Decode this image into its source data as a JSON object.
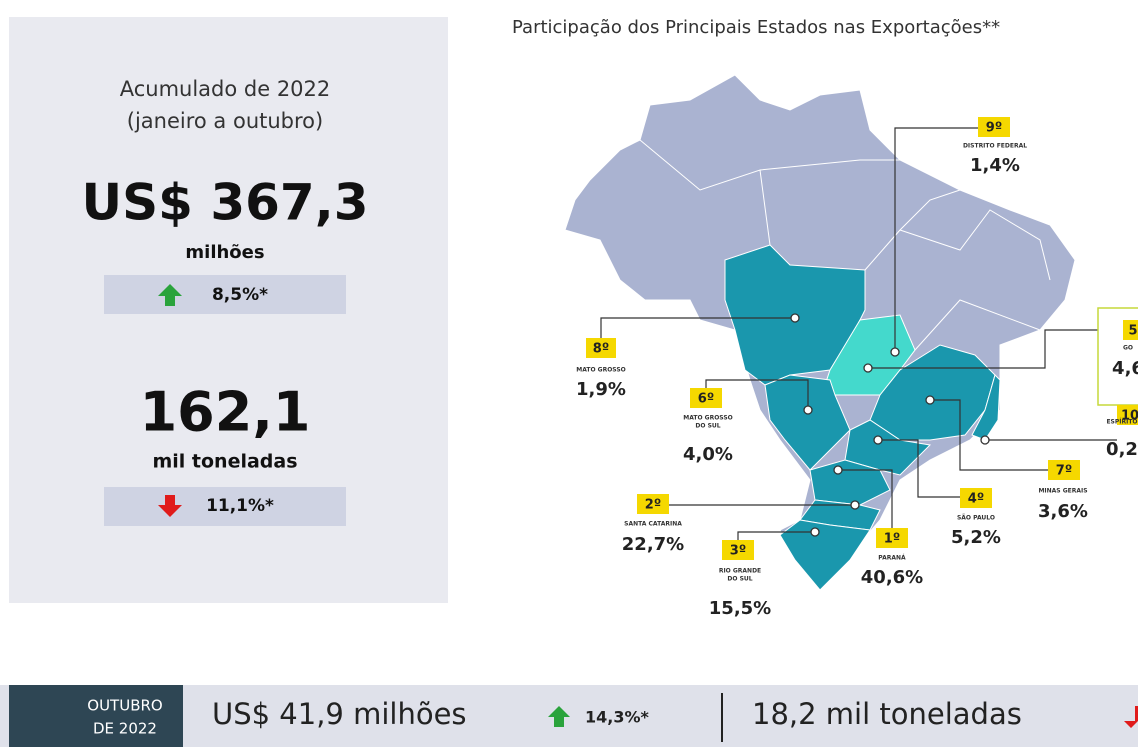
{
  "panel": {
    "period": "Acumulado de 2022",
    "range": "(janeiro a outubro)",
    "value": "US$ 367,3",
    "value_unit": "milhões",
    "value_change": "8,5%*",
    "volume": "162,1",
    "volume_unit": "mil toneladas",
    "volume_change": "11,1%*"
  },
  "map": {
    "title": "Participação dos Principais Estados nas Exportações**",
    "states": [
      {
        "rank": "9º",
        "name": [
          "DISTRITO FEDERAL"
        ],
        "share": "1,4%"
      },
      {
        "rank": "8º",
        "name": [
          "MATO GROSSO"
        ],
        "share": "1,9%"
      },
      {
        "rank": "6º",
        "name": [
          "MATO GROSSO",
          "DO SUL"
        ],
        "share": "4,0%"
      },
      {
        "rank": "2º",
        "name": [
          "SANTA CATARINA"
        ],
        "share": "22,7%"
      },
      {
        "rank": "3º",
        "name": [
          "RIO GRANDE",
          "DO SUL"
        ],
        "share": "15,5%"
      },
      {
        "rank": "1º",
        "name": [
          "PARANÁ"
        ],
        "share": "40,6%"
      },
      {
        "rank": "4º",
        "name": [
          "SÃO PAULO"
        ],
        "share": "5,2%"
      },
      {
        "rank": "7º",
        "name": [
          "MINAS GERAIS"
        ],
        "share": "3,6%"
      },
      {
        "rank": "5",
        "name": [
          "GO"
        ],
        "share": "4,6"
      },
      {
        "rank": "10",
        "name": [
          "ESPÍRITO"
        ],
        "share": "0,2"
      }
    ]
  },
  "footer": {
    "period": [
      "OUTUBRO",
      "DE 2022"
    ],
    "value": "US$ 41,9 milhões",
    "value_change": "14,3%*",
    "volume": "18,2 mil toneladas"
  }
}
